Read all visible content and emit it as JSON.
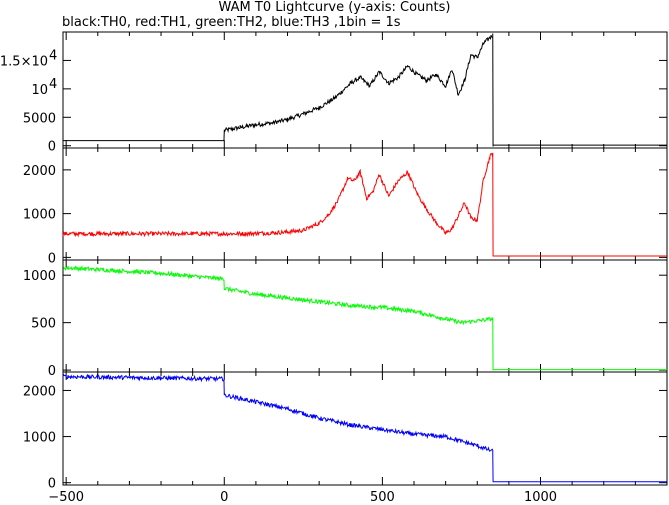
{
  "chart_data": {
    "type": "line",
    "title": "WAM T0 Lightcurve (y-axis: Counts)",
    "subtitle": "black:TH0, red:TH1, green:TH2, blue:TH3 ,1bin = 1s",
    "xlim": [
      -510,
      1400
    ],
    "x_ticks": [
      {
        "value": -500,
        "label": "−500"
      },
      {
        "value": 0,
        "label": "0"
      },
      {
        "value": 500,
        "label": "500"
      },
      {
        "value": 1000,
        "label": "1000"
      }
    ],
    "grid": false,
    "panels": [
      {
        "name": "TH0",
        "color": "#000000",
        "ylim": [
          -400,
          20000
        ],
        "y_ticks": [
          {
            "value": 0,
            "label": "0"
          },
          {
            "value": 5000,
            "label": "5000"
          },
          {
            "value": 10000,
            "label": "10",
            "exp": "4"
          },
          {
            "value": 15000,
            "label": "1.5×10",
            "exp": "4"
          }
        ],
        "x": [
          -510,
          -1,
          0,
          50,
          100,
          150,
          200,
          250,
          300,
          350,
          400,
          430,
          460,
          490,
          520,
          550,
          580,
          610,
          640,
          670,
          700,
          720,
          740,
          760,
          780,
          800,
          820,
          840,
          849,
          850,
          1400
        ],
        "y": [
          900,
          900,
          2700,
          3200,
          3700,
          4000,
          4600,
          5600,
          6700,
          8400,
          11000,
          12000,
          10500,
          13000,
          11000,
          12000,
          14000,
          12500,
          11500,
          12500,
          10500,
          13500,
          9000,
          11500,
          16000,
          15500,
          18000,
          19000,
          19500,
          100,
          100
        ]
      },
      {
        "name": "TH1",
        "color": "#ff0000",
        "ylim": [
          -60,
          2500
        ],
        "y_ticks": [
          {
            "value": 0,
            "label": "0"
          },
          {
            "value": 1000,
            "label": "1000"
          },
          {
            "value": 2000,
            "label": "2000"
          }
        ],
        "x": [
          -510,
          -1,
          0,
          50,
          100,
          150,
          200,
          250,
          300,
          330,
          360,
          390,
          410,
          430,
          450,
          470,
          490,
          520,
          550,
          580,
          610,
          640,
          670,
          700,
          720,
          740,
          760,
          780,
          800,
          820,
          840,
          849,
          850,
          1400
        ],
        "y": [
          540,
          540,
          540,
          540,
          550,
          560,
          580,
          620,
          780,
          980,
          1300,
          1800,
          1750,
          1950,
          1350,
          1500,
          1900,
          1400,
          1750,
          1950,
          1450,
          1100,
          800,
          550,
          650,
          950,
          1250,
          900,
          850,
          1800,
          2300,
          2400,
          30,
          30
        ]
      },
      {
        "name": "TH2",
        "color": "#00ff00",
        "ylim": [
          -20,
          1160
        ],
        "y_ticks": [
          {
            "value": 0,
            "label": "0"
          },
          {
            "value": 500,
            "label": "500"
          },
          {
            "value": 1000,
            "label": "1000"
          }
        ],
        "x": [
          -510,
          -400,
          -300,
          -200,
          -100,
          -1,
          0,
          50,
          100,
          200,
          300,
          400,
          500,
          600,
          700,
          750,
          800,
          849,
          850,
          1400
        ],
        "y": [
          1080,
          1060,
          1040,
          1020,
          990,
          960,
          860,
          830,
          800,
          760,
          720,
          680,
          660,
          620,
          540,
          500,
          520,
          540,
          5,
          5
        ]
      },
      {
        "name": "TH3",
        "color": "#0000ff",
        "ylim": [
          -50,
          2400
        ],
        "y_ticks": [
          {
            "value": 0,
            "label": "0"
          },
          {
            "value": 1000,
            "label": "1000"
          },
          {
            "value": 2000,
            "label": "2000"
          }
        ],
        "x": [
          -510,
          -400,
          -300,
          -200,
          -100,
          -1,
          0,
          100,
          200,
          300,
          400,
          500,
          600,
          700,
          750,
          800,
          849,
          850,
          1400
        ],
        "y": [
          2300,
          2290,
          2280,
          2270,
          2260,
          2250,
          1900,
          1750,
          1600,
          1400,
          1250,
          1150,
          1050,
          1000,
          900,
          800,
          680,
          20,
          20
        ]
      }
    ]
  }
}
